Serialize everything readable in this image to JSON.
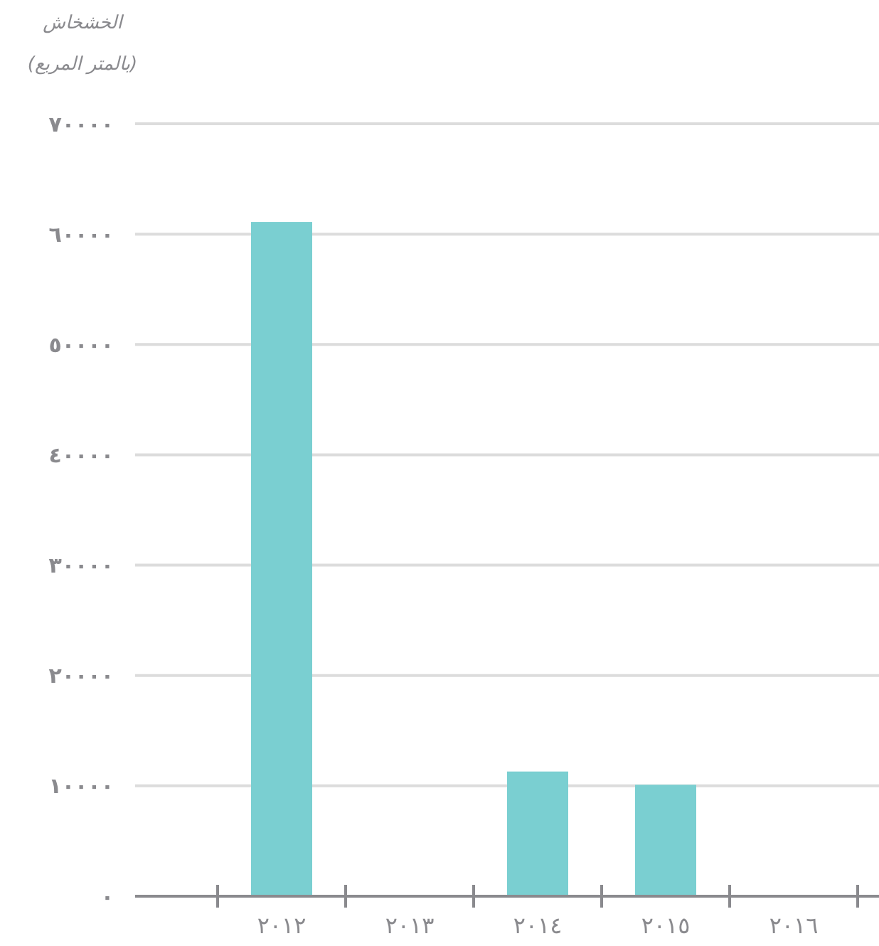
{
  "chart_data": {
    "type": "bar",
    "ylabel": "الخشخاش\n(بالمتر المربع)",
    "categories": [
      "٢٠١٢",
      "٢٠١٣",
      "٢٠١٤",
      "٢٠١٥",
      "٢٠١٦"
    ],
    "values": [
      61100,
      0,
      11300,
      10100,
      0
    ],
    "color": "#7acfd1",
    "ylim": [
      0,
      70000
    ],
    "yticks": [
      {
        "value": 0,
        "label": "٠"
      },
      {
        "value": 10000,
        "label": "١٠٠٠٠"
      },
      {
        "value": 20000,
        "label": "٢٠٠٠٠"
      },
      {
        "value": 30000,
        "label": "٣٠٠٠٠"
      },
      {
        "value": 40000,
        "label": "٤٠٠٠٠"
      },
      {
        "value": 50000,
        "label": "٥٠٠٠٠"
      },
      {
        "value": 60000,
        "label": "٦٠٠٠٠"
      },
      {
        "value": 70000,
        "label": "٧٠٠٠٠"
      }
    ],
    "grid": "y"
  }
}
